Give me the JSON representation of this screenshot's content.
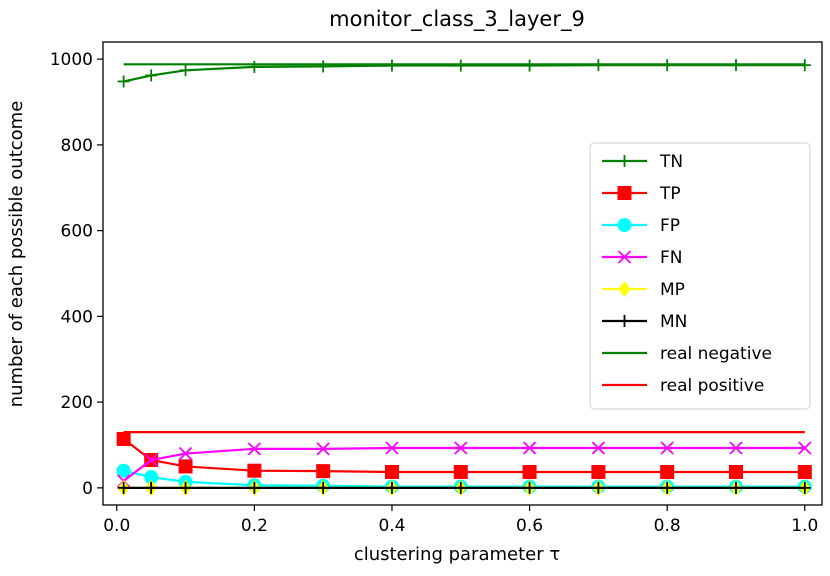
{
  "chart_data": {
    "type": "line",
    "title": "monitor_class_3_layer_9",
    "xlabel": "clustering parameter τ",
    "ylabel": "number of each possible outcome",
    "xlim": [
      -0.02,
      1.025
    ],
    "ylim": [
      -40,
      1040
    ],
    "x_ticks": [
      0.0,
      0.2,
      0.4,
      0.6,
      0.8,
      1.0
    ],
    "x_tick_labels": [
      "0.0",
      "0.2",
      "0.4",
      "0.6",
      "0.8",
      "1.0"
    ],
    "y_ticks": [
      0,
      200,
      400,
      600,
      800,
      1000
    ],
    "y_tick_labels": [
      "0",
      "200",
      "400",
      "600",
      "800",
      "1000"
    ],
    "grid": false,
    "legend_position": "center-right",
    "x": [
      0.01,
      0.05,
      0.1,
      0.2,
      0.3,
      0.4,
      0.5,
      0.6,
      0.7,
      0.8,
      0.9,
      1.0
    ],
    "series": [
      {
        "name": "TN",
        "color": "#008000",
        "marker": "plus",
        "values": [
          948,
          962,
          974,
          982,
          983,
          985,
          985,
          985,
          986,
          986,
          986,
          986
        ]
      },
      {
        "name": "TP",
        "color": "#ff0000",
        "marker": "square",
        "values": [
          114,
          65,
          50,
          40,
          39,
          37,
          37,
          37,
          37,
          37,
          37,
          37
        ]
      },
      {
        "name": "FP",
        "color": "#00ffff",
        "marker": "circle",
        "values": [
          40,
          25,
          14,
          6,
          5,
          3,
          3,
          3,
          3,
          3,
          3,
          3
        ]
      },
      {
        "name": "FN",
        "color": "#ff00ff",
        "marker": "x",
        "values": [
          16,
          65,
          80,
          91,
          91,
          93,
          93,
          93,
          93,
          93,
          93,
          93
        ]
      },
      {
        "name": "MP",
        "color": "#ffff00",
        "marker": "diamond",
        "values": [
          0,
          0,
          0,
          0,
          0,
          0,
          0,
          0,
          0,
          0,
          0,
          0
        ]
      },
      {
        "name": "MN",
        "color": "#000000",
        "marker": "plus",
        "values": [
          0,
          0,
          0,
          0,
          0,
          0,
          0,
          0,
          0,
          0,
          0,
          0
        ]
      }
    ],
    "reference_lines": [
      {
        "name": "real negative",
        "color": "#008000",
        "value": 988,
        "x_range": [
          0.01,
          1.0
        ]
      },
      {
        "name": "real positive",
        "color": "#ff0000",
        "value": 130,
        "x_range": [
          0.01,
          1.0
        ]
      }
    ]
  }
}
